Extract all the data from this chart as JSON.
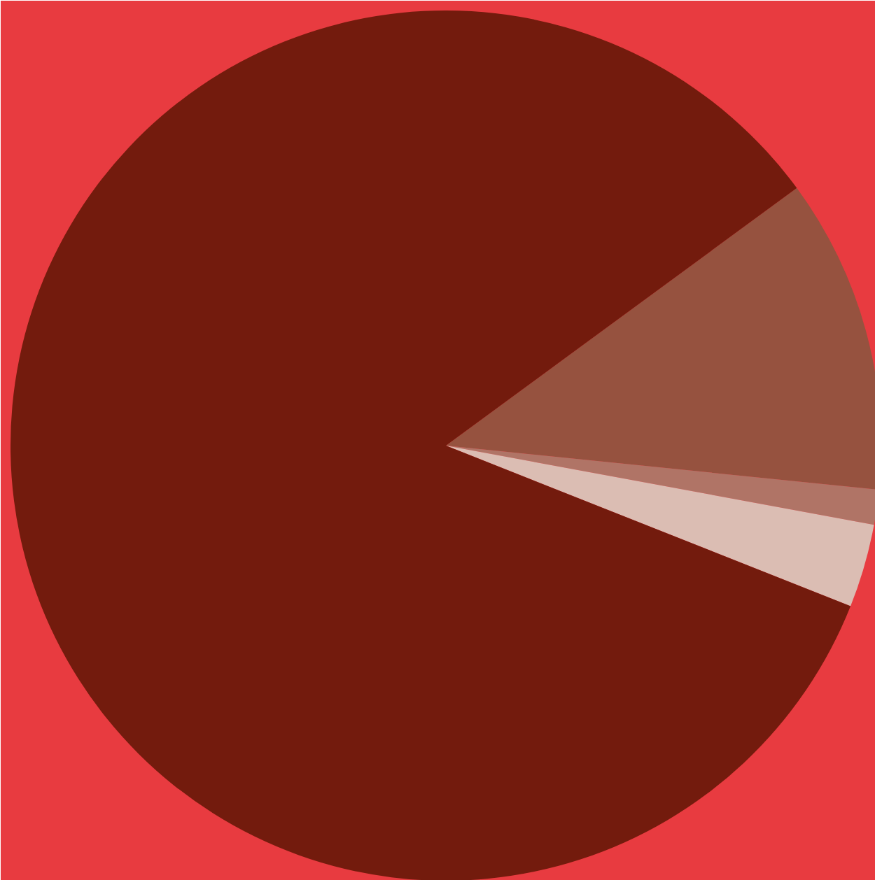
{
  "chart_data": {
    "type": "pie",
    "categories": [
      null,
      null,
      null,
      null
    ],
    "values": [
      11.7,
      1.3,
      3.1,
      83.9
    ],
    "colors": [
      "#96523f",
      "#b07466",
      "#dbbdb3",
      "#731b0d"
    ]
  }
}
